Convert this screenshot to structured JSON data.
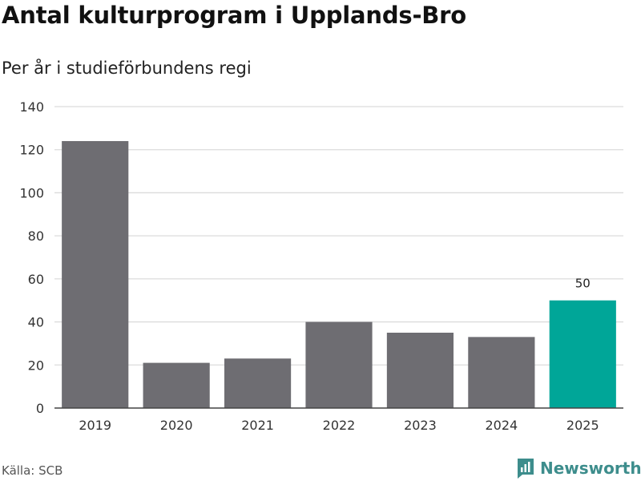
{
  "title": "Antal kulturprogram i Upplands-Bro",
  "subtitle": "Per år i studieförbundens regi",
  "source": "Källa: SCB",
  "brand": "Newsworthy",
  "colors": {
    "bar": "#6e6d72",
    "highlight": "#00a698",
    "grid": "#dcdcdc",
    "brand": "#3d8d8c"
  },
  "chart_data": {
    "type": "bar",
    "categories": [
      "2019",
      "2020",
      "2021",
      "2022",
      "2023",
      "2024",
      "2025"
    ],
    "values": [
      124,
      21,
      23,
      40,
      35,
      33,
      50
    ],
    "highlight_index": 6,
    "data_labels": [
      {
        "index": 6,
        "text": "50"
      }
    ],
    "yticks": [
      0,
      20,
      40,
      60,
      80,
      100,
      120,
      140
    ],
    "ylim": [
      0,
      140
    ],
    "grid": true,
    "title": "Antal kulturprogram i Upplands-Bro",
    "subtitle": "Per år i studieförbundens regi",
    "xlabel": "",
    "ylabel": ""
  }
}
